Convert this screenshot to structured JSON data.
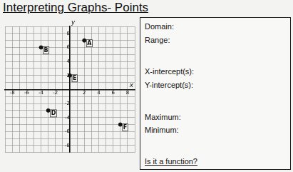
{
  "chart_data": {
    "type": "scatter",
    "title": "Interpreting Graphs- Points",
    "x_label": "x",
    "y_label": "y",
    "points": [
      {
        "label": "A",
        "x": 2,
        "y": 7
      },
      {
        "label": "B",
        "x": -4,
        "y": 6
      },
      {
        "label": "E",
        "x": 0,
        "y": 2
      },
      {
        "label": "D",
        "x": -3,
        "y": -3
      },
      {
        "label": "F",
        "x": 7,
        "y": -5
      }
    ],
    "color": "#111111",
    "marker": "circle",
    "xlim": [
      -9,
      9
    ],
    "xticks": [
      -8,
      -6,
      -4,
      -2,
      2,
      4,
      6,
      8
    ],
    "ylim": [
      -9,
      9
    ],
    "yticks": [
      -8,
      -6,
      -4,
      -2,
      2,
      4,
      6,
      8
    ],
    "grid": true
  },
  "panel": {
    "fields": [
      "Domain:",
      "Range:",
      "X-intercept(s):",
      "Y-intercept(s):",
      "Maximum:",
      "Minimum:"
    ],
    "question": "Is it a function?"
  }
}
